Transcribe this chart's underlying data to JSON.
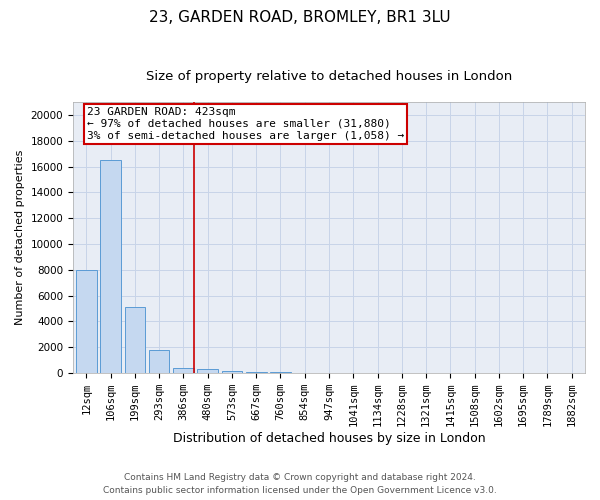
{
  "title1": "23, GARDEN ROAD, BROMLEY, BR1 3LU",
  "title2": "Size of property relative to detached houses in London",
  "xlabel": "Distribution of detached houses by size in London",
  "ylabel": "Number of detached properties",
  "categories": [
    "12sqm",
    "106sqm",
    "199sqm",
    "293sqm",
    "386sqm",
    "480sqm",
    "573sqm",
    "667sqm",
    "760sqm",
    "854sqm",
    "947sqm",
    "1041sqm",
    "1134sqm",
    "1228sqm",
    "1321sqm",
    "1415sqm",
    "1508sqm",
    "1602sqm",
    "1695sqm",
    "1789sqm",
    "1882sqm"
  ],
  "values": [
    8000,
    16500,
    5100,
    1750,
    420,
    290,
    155,
    90,
    55,
    0,
    0,
    0,
    0,
    0,
    0,
    0,
    0,
    0,
    0,
    0,
    0
  ],
  "bar_color": "#c5d8f0",
  "bar_edge_color": "#5b9bd5",
  "vline_x_idx": 4.45,
  "vline_color": "#cc0000",
  "annotation_line1": "23 GARDEN ROAD: 423sqm",
  "annotation_line2": "← 97% of detached houses are smaller (31,880)",
  "annotation_line3": "3% of semi-detached houses are larger (1,058) →",
  "annotation_box_color": "#ffffff",
  "annotation_box_edge": "#cc0000",
  "ylim": [
    0,
    21000
  ],
  "yticks": [
    0,
    2000,
    4000,
    6000,
    8000,
    10000,
    12000,
    14000,
    16000,
    18000,
    20000
  ],
  "grid_color": "#c8d4e8",
  "background_color": "#e8edf5",
  "footer_line1": "Contains HM Land Registry data © Crown copyright and database right 2024.",
  "footer_line2": "Contains public sector information licensed under the Open Government Licence v3.0.",
  "title1_fontsize": 11,
  "title2_fontsize": 9.5,
  "xlabel_fontsize": 9,
  "ylabel_fontsize": 8,
  "tick_fontsize": 7.5,
  "annotation_fontsize": 8,
  "footer_fontsize": 6.5
}
